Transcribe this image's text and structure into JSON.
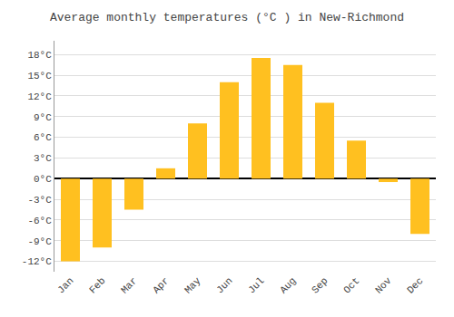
{
  "chart_data": {
    "type": "bar",
    "title": "Average monthly temperatures (°C ) in New-Richmond",
    "categories": [
      "Jan",
      "Feb",
      "Mar",
      "Apr",
      "May",
      "Jun",
      "Jul",
      "Aug",
      "Sep",
      "Oct",
      "Nov",
      "Dec"
    ],
    "values": [
      -12,
      -10,
      -4.5,
      1.5,
      8,
      14,
      17.5,
      16.5,
      11,
      5.5,
      -0.5,
      -8
    ],
    "color": "#FFC020",
    "ylim": [
      -13.5,
      20
    ],
    "yticks": [
      {
        "value": -12,
        "label": "-12°C"
      },
      {
        "value": -9,
        "label": "-9°C"
      },
      {
        "value": -6,
        "label": "-6°C"
      },
      {
        "value": -3,
        "label": "-3°C"
      },
      {
        "value": 0,
        "label": "0°C"
      },
      {
        "value": 3,
        "label": "3°C"
      },
      {
        "value": 6,
        "label": "6°C"
      },
      {
        "value": 9,
        "label": "9°C"
      },
      {
        "value": 12,
        "label": "12°C"
      },
      {
        "value": 15,
        "label": "15°C"
      },
      {
        "value": 18,
        "label": "18°C"
      }
    ],
    "grid": true
  }
}
